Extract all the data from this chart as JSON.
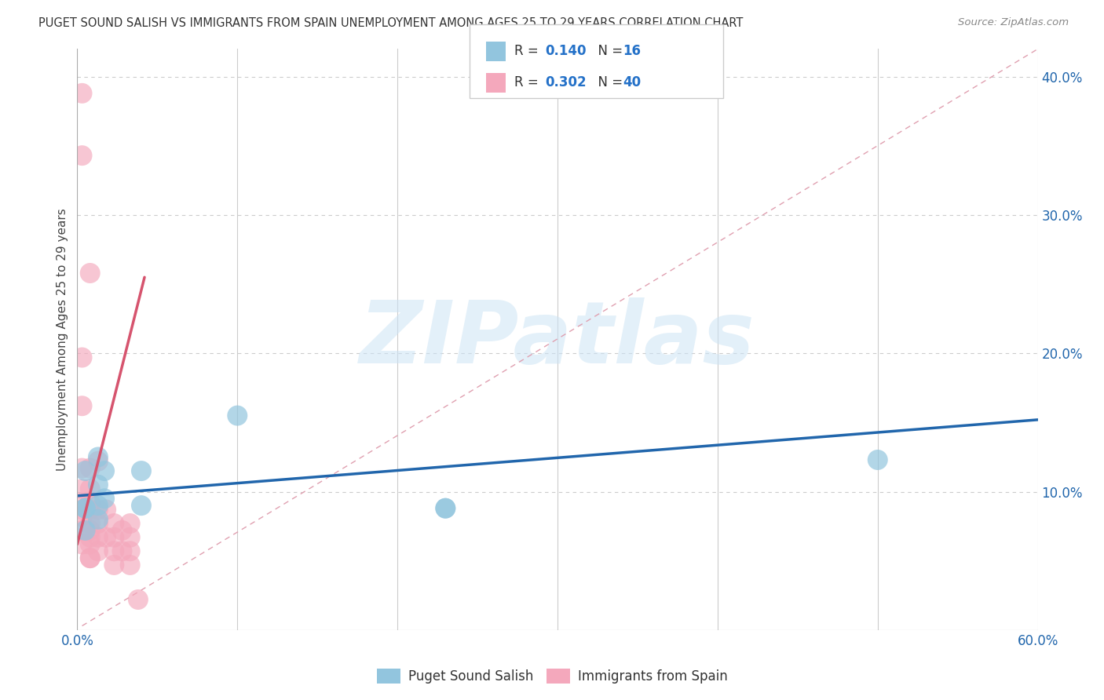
{
  "title": "PUGET SOUND SALISH VS IMMIGRANTS FROM SPAIN UNEMPLOYMENT AMONG AGES 25 TO 29 YEARS CORRELATION CHART",
  "source": "Source: ZipAtlas.com",
  "ylabel": "Unemployment Among Ages 25 to 29 years",
  "xlim": [
    0,
    0.6
  ],
  "ylim": [
    0,
    0.42
  ],
  "x_ticks": [
    0.0,
    0.1,
    0.2,
    0.3,
    0.4,
    0.5,
    0.6
  ],
  "x_tick_labels": [
    "0.0%",
    "",
    "",
    "",
    "",
    "",
    "60.0%"
  ],
  "y_ticks_right": [
    0.0,
    0.1,
    0.2,
    0.3,
    0.4
  ],
  "y_tick_labels_right": [
    "",
    "10.0%",
    "20.0%",
    "30.0%",
    "40.0%"
  ],
  "blue_R": 0.14,
  "blue_N": 16,
  "pink_R": 0.302,
  "pink_N": 40,
  "blue_color": "#92c5de",
  "pink_color": "#f4a8bc",
  "blue_line_color": "#2166ac",
  "pink_line_color": "#d6546e",
  "watermark": "ZIPatlas",
  "blue_points_x": [
    0.005,
    0.013,
    0.013,
    0.013,
    0.013,
    0.017,
    0.017,
    0.04,
    0.04,
    0.1,
    0.5,
    0.23,
    0.23,
    0.005,
    0.005,
    0.005
  ],
  "blue_points_y": [
    0.115,
    0.125,
    0.105,
    0.09,
    0.08,
    0.115,
    0.095,
    0.115,
    0.09,
    0.155,
    0.123,
    0.088,
    0.088,
    0.088,
    0.088,
    0.072
  ],
  "pink_points_x": [
    0.003,
    0.003,
    0.003,
    0.003,
    0.003,
    0.003,
    0.003,
    0.003,
    0.003,
    0.003,
    0.003,
    0.008,
    0.008,
    0.008,
    0.008,
    0.008,
    0.008,
    0.008,
    0.013,
    0.013,
    0.013,
    0.013,
    0.013,
    0.018,
    0.018,
    0.023,
    0.023,
    0.023,
    0.023,
    0.028,
    0.028,
    0.033,
    0.033,
    0.033,
    0.033,
    0.038,
    0.008,
    0.008,
    0.008,
    0.008
  ],
  "pink_points_y": [
    0.388,
    0.343,
    0.197,
    0.162,
    0.117,
    0.102,
    0.092,
    0.087,
    0.082,
    0.072,
    0.062,
    0.258,
    0.117,
    0.102,
    0.087,
    0.077,
    0.067,
    0.052,
    0.122,
    0.087,
    0.077,
    0.067,
    0.057,
    0.087,
    0.067,
    0.077,
    0.067,
    0.057,
    0.047,
    0.072,
    0.057,
    0.077,
    0.067,
    0.057,
    0.047,
    0.022,
    0.092,
    0.072,
    0.062,
    0.052
  ],
  "background_color": "#ffffff",
  "grid_color": "#cccccc",
  "blue_line_x": [
    0.0,
    0.6
  ],
  "blue_line_y": [
    0.097,
    0.152
  ],
  "pink_line_x": [
    0.0,
    0.042
  ],
  "pink_line_y": [
    0.062,
    0.255
  ],
  "dash_line_x": [
    0.003,
    0.6
  ],
  "dash_line_y": [
    0.003,
    0.42
  ]
}
